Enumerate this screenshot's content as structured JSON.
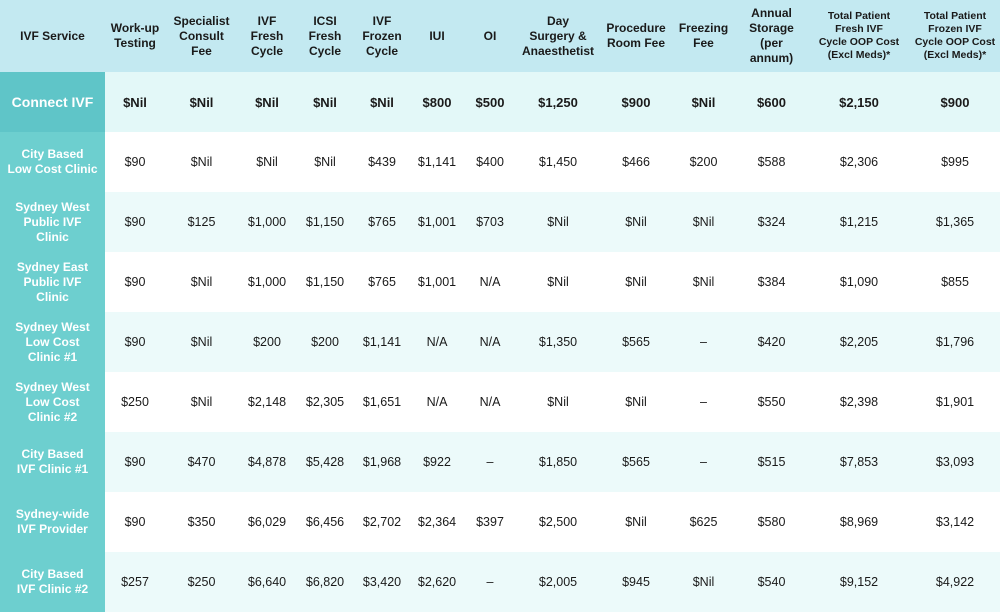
{
  "table": {
    "header": [
      "IVF Service",
      "Work-up\nTesting",
      "Specialist\nConsult\nFee",
      "IVF\nFresh\nCycle",
      "ICSI\nFresh\nCycle",
      "IVF\nFrozen\nCycle",
      "IUI",
      "OI",
      "Day\nSurgery &\nAnaesthetist",
      "Procedure\nRoom Fee",
      "Freezing\nFee",
      "Annual\nStorage\n(per annum)",
      "Total Patient\nFresh IVF\nCycle OOP Cost\n(Excl Meds)*",
      "Total Patient\nFrozen IVF\nCycle OOP Cost\n(Excl Meds)*"
    ],
    "rows": [
      [
        "Connect IVF",
        "$Nil",
        "$Nil",
        "$Nil",
        "$Nil",
        "$Nil",
        "$800",
        "$500",
        "$1,250",
        "$900",
        "$Nil",
        "$600",
        "$2,150",
        "$900"
      ],
      [
        "City Based\nLow Cost Clinic",
        "$90",
        "$Nil",
        "$Nil",
        "$Nil",
        "$439",
        "$1,141",
        "$400",
        "$1,450",
        "$466",
        "$200",
        "$588",
        "$2,306",
        "$995"
      ],
      [
        "Sydney West\nPublic IVF\nClinic",
        "$90",
        "$125",
        "$1,000",
        "$1,150",
        "$765",
        "$1,001",
        "$703",
        "$Nil",
        "$Nil",
        "$Nil",
        "$324",
        "$1,215",
        "$1,365"
      ],
      [
        "Sydney East\nPublic IVF\nClinic",
        "$90",
        "$Nil",
        "$1,000",
        "$1,150",
        "$765",
        "$1,001",
        "N/A",
        "$Nil",
        "$Nil",
        "$Nil",
        "$384",
        "$1,090",
        "$855"
      ],
      [
        "Sydney West\nLow Cost\nClinic #1",
        "$90",
        "$Nil",
        "$200",
        "$200",
        "$1,141",
        "N/A",
        "N/A",
        "$1,350",
        "$565",
        "–",
        "$420",
        "$2,205",
        "$1,796"
      ],
      [
        "Sydney West\nLow Cost\nClinic #2",
        "$250",
        "$Nil",
        "$2,148",
        "$2,305",
        "$1,651",
        "N/A",
        "N/A",
        "$Nil",
        "$Nil",
        "–",
        "$550",
        "$2,398",
        "$1,901"
      ],
      [
        "City Based\nIVF Clinic #1",
        "$90",
        "$470",
        "$4,878",
        "$5,428",
        "$1,968",
        "$922",
        "–",
        "$1,850",
        "$565",
        "–",
        "$515",
        "$7,853",
        "$3,093"
      ],
      [
        "Sydney-wide\nIVF Provider",
        "$90",
        "$350",
        "$6,029",
        "$6,456",
        "$2,702",
        "$2,364",
        "$397",
        "$2,500",
        "$Nil",
        "$625",
        "$580",
        "$8,969",
        "$3,142"
      ],
      [
        "City Based\nIVF Clinic #2",
        "$257",
        "$250",
        "$6,640",
        "$6,820",
        "$3,420",
        "$2,620",
        "–",
        "$2,005",
        "$945",
        "$Nil",
        "$540",
        "$9,152",
        "$4,922"
      ]
    ]
  }
}
